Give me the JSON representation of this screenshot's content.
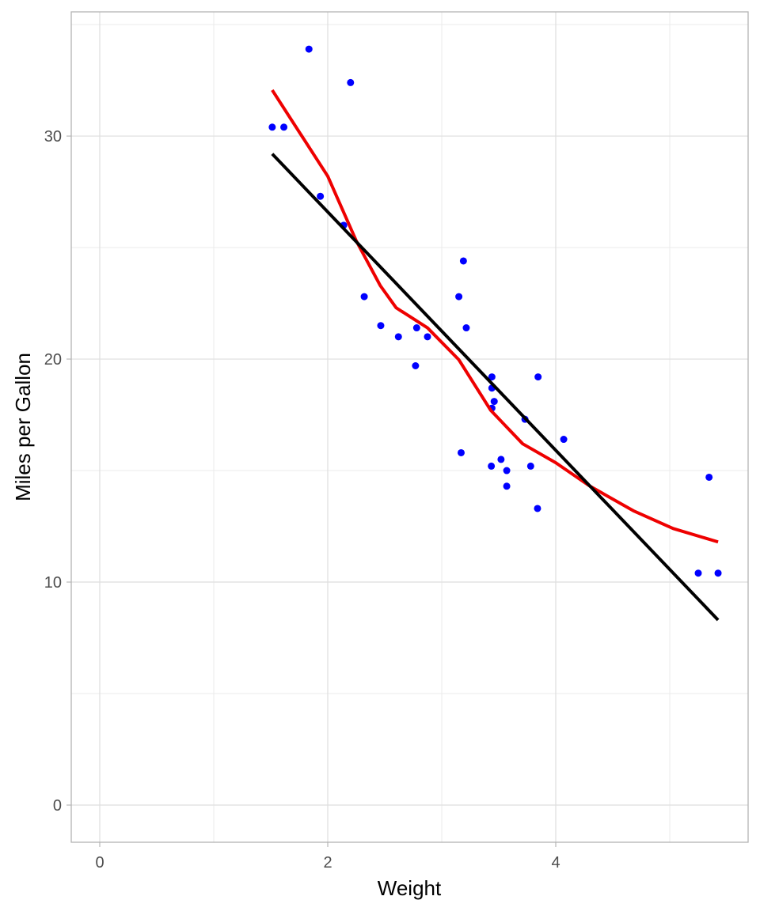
{
  "chart_data": {
    "type": "scatter",
    "x_label": "Weight",
    "y_label": "Miles per Gallon",
    "xlim": [
      -0.25,
      5.6875
    ],
    "ylim": [
      -1.667,
      35.57
    ],
    "xticks": [
      0,
      2,
      4
    ],
    "yticks": [
      0,
      10,
      20,
      30
    ],
    "grid": true,
    "series": [
      {
        "mode": "markers",
        "color": "#0000ff",
        "x": [
          2.62,
          2.875,
          2.32,
          3.215,
          3.44,
          3.46,
          3.57,
          3.19,
          3.15,
          3.44,
          3.44,
          4.07,
          3.73,
          3.78,
          5.25,
          5.424,
          5.345,
          2.2,
          1.615,
          1.835,
          2.465,
          3.52,
          3.435,
          3.84,
          3.845,
          1.935,
          2.14,
          1.513,
          3.17,
          2.77,
          3.57,
          2.78
        ],
        "values": [
          21.0,
          21.0,
          22.8,
          21.4,
          18.7,
          18.1,
          14.3,
          24.4,
          22.8,
          19.2,
          17.8,
          16.4,
          17.3,
          15.2,
          10.4,
          10.4,
          14.7,
          32.4,
          30.4,
          33.9,
          21.5,
          15.5,
          15.2,
          13.3,
          19.2,
          27.3,
          26.0,
          30.4,
          15.8,
          19.7,
          15.0,
          21.4
        ]
      },
      {
        "mode": "line",
        "color": "#ee0000",
        "x": [
          1.513,
          2.0,
          2.25,
          2.46,
          2.6,
          2.875,
          3.15,
          3.43,
          3.71,
          4.0,
          4.3,
          4.68,
          5.03,
          5.424
        ],
        "values": [
          32.06,
          28.2,
          25.3,
          23.3,
          22.3,
          21.4,
          19.97,
          17.7,
          16.2,
          15.35,
          14.3,
          13.2,
          12.4,
          11.8
        ]
      },
      {
        "mode": "line",
        "color": "#000000",
        "x": [
          1.513,
          5.424
        ],
        "values": [
          29.2,
          8.3
        ]
      }
    ]
  }
}
